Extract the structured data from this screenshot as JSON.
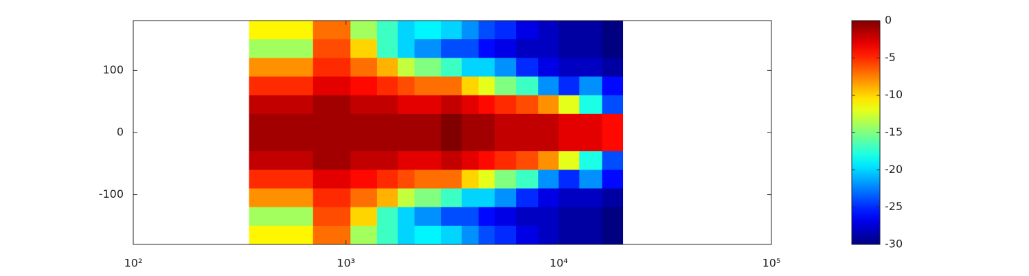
{
  "chart_data": {
    "type": "heatmap",
    "colormap": "jet",
    "xscale": "log",
    "xlim": [
      100,
      100000
    ],
    "xticks": [
      {
        "value": 100,
        "label": "10²"
      },
      {
        "value": 1000,
        "label": "10³"
      },
      {
        "value": 10000,
        "label": "10⁴"
      },
      {
        "value": 100000,
        "label": "10⁵"
      }
    ],
    "ylim": [
      -180,
      180
    ],
    "yticks": [
      -100,
      0,
      100
    ],
    "xbins": [
      350,
      700,
      1050,
      1400,
      1750,
      2100,
      2800,
      3500,
      4200,
      5000,
      6300,
      8000,
      10000,
      12500,
      16000,
      20000
    ],
    "ybins": [
      180,
      150,
      120,
      90,
      60,
      30,
      0,
      -30,
      -60,
      -90,
      -120,
      -150,
      -180
    ],
    "values": [
      [
        -11,
        -7,
        -14,
        -17,
        -20,
        -19,
        -20,
        -22,
        -24,
        -25,
        -27,
        -28,
        -29,
        -29,
        -30
      ],
      [
        -14,
        -6,
        -10,
        -17,
        -20,
        -22,
        -24,
        -24,
        -26,
        -27,
        -28,
        -28,
        -29,
        -29,
        -30
      ],
      [
        -8,
        -5,
        -7,
        -9,
        -13,
        -15,
        -17,
        -20,
        -20,
        -22,
        -25,
        -27,
        -28,
        -28,
        -29
      ],
      [
        -5,
        -3,
        -4,
        -5,
        -6,
        -7,
        -7,
        -10,
        -12,
        -15,
        -17,
        -22,
        -25,
        -22,
        -26
      ],
      [
        -2,
        -1,
        -2,
        -2,
        -3,
        -3,
        -2,
        -3,
        -4,
        -5,
        -6,
        -8,
        -12,
        -18,
        -24
      ],
      [
        -1,
        -1,
        -1,
        -1,
        -1,
        -1,
        0,
        -1,
        -1,
        -2,
        -2,
        -2,
        -3,
        -3,
        -4
      ],
      [
        -1,
        -1,
        -1,
        -1,
        -1,
        -1,
        0,
        -1,
        -1,
        -2,
        -2,
        -2,
        -3,
        -3,
        -4
      ],
      [
        -2,
        -1,
        -2,
        -2,
        -3,
        -3,
        -2,
        -3,
        -4,
        -5,
        -6,
        -8,
        -12,
        -18,
        -24
      ],
      [
        -5,
        -3,
        -4,
        -5,
        -6,
        -7,
        -7,
        -10,
        -12,
        -15,
        -17,
        -22,
        -25,
        -22,
        -26
      ],
      [
        -8,
        -5,
        -7,
        -9,
        -13,
        -15,
        -17,
        -20,
        -20,
        -22,
        -25,
        -27,
        -28,
        -28,
        -29
      ],
      [
        -14,
        -6,
        -10,
        -17,
        -20,
        -22,
        -24,
        -24,
        -26,
        -27,
        -28,
        -28,
        -29,
        -29,
        -30
      ],
      [
        -11,
        -7,
        -14,
        -17,
        -20,
        -19,
        -20,
        -22,
        -24,
        -25,
        -27,
        -28,
        -29,
        -29,
        -30
      ]
    ],
    "clim": [
      -30,
      0
    ],
    "cticks": [
      0,
      -5,
      -10,
      -15,
      -20,
      -25,
      -30
    ]
  }
}
